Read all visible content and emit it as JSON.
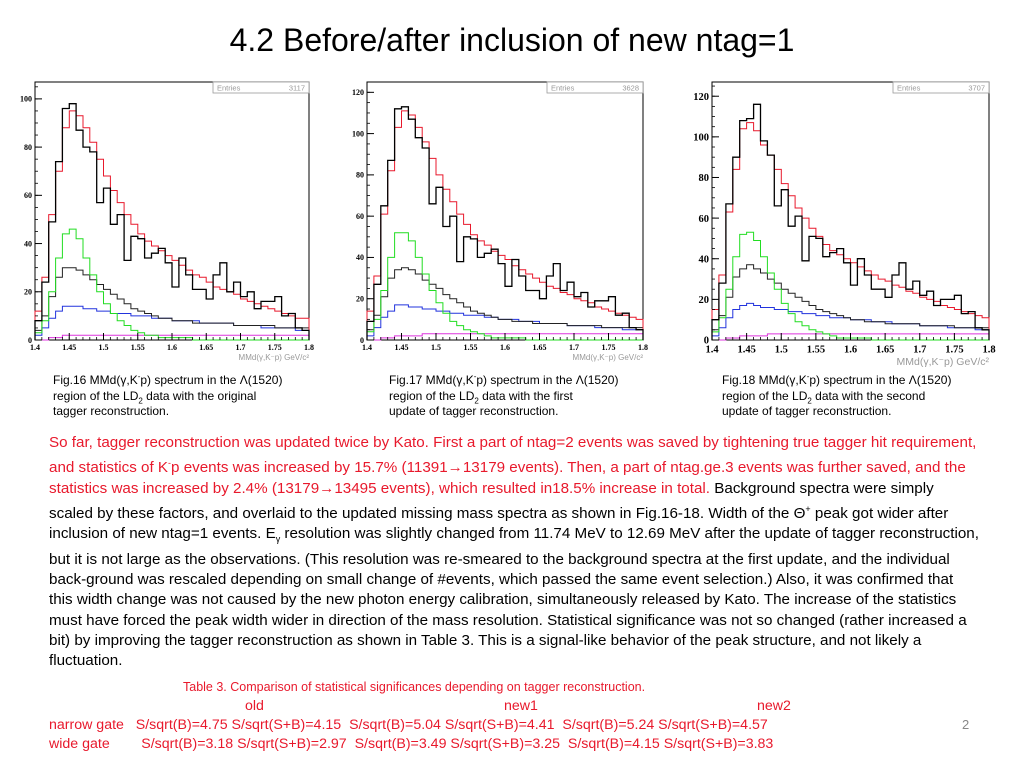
{
  "slide": {
    "title": "4.2 Before/after inclusion of new ntag=1",
    "page_number": "2"
  },
  "captions": [
    {
      "prefix": "Fig.16 MMd(",
      "gamma": "γ",
      "mid": ",K",
      "minus": "-",
      "p_text": "p) spectrum in the ",
      "lambda": "Λ",
      "res": "(1520)",
      "line2a": "region of the LD",
      "sub2": "2",
      "line2b": " data with the original",
      "line3": "tagger reconstruction."
    },
    {
      "prefix": "Fig.17 MMd(",
      "gamma": "γ",
      "mid": ",K",
      "minus": "-",
      "p_text": "p) spectrum in the ",
      "lambda": "Λ",
      "res": "(1520)",
      "line2a": "region of the LD",
      "sub2": "2",
      "line2b": " data with the first",
      "line3": "update of tagger reconstruction."
    },
    {
      "prefix": "Fig.18 MMd(",
      "gamma": "γ",
      "mid": ",K",
      "minus": "-",
      "p_text": "p) spectrum in the ",
      "lambda": "Λ",
      "res": "(1520)",
      "line2a": "region of the LD",
      "sub2": "2",
      "line2b": " data with the second",
      "line3": "update of tagger reconstruction."
    }
  ],
  "body": {
    "red1": "So far, tagger reconstruction was updated twice by Kato. First a part of ntag=2 events was saved by tightening true tagger hit requirement, and statistics of K",
    "red_sup": "-",
    "red2": "p events was increased by 15.7% (11391",
    "arrow1": "→",
    "red3": "13179 events). Then, a part of ntag.ge.3 events was further saved, and the statistics was increased by 2.4% (13179",
    "arrow2": "→",
    "red4": "13495 events), which resulted in18.5% increase in total.",
    "black1": " Background spectra were simply scaled by these factors, and overlaid to the updated missing mass spectra as shown in Fig.16-18. Width of the ",
    "theta": "Θ",
    "theta_sup": "+",
    "black2": " peak got wider after inclusion of new ntag=1 events. E",
    "gamma_sub": "γ",
    "black3": " resolution was slightly changed from 11.74 MeV to 12.69 MeV after the update of tagger reconstruction, but it is not large as the observations. (This resolution was re-smeared to the background spectra at the first update, and the individual back-ground was rescaled depending on small change of #events, which passed the same event selection.) Also, it was confirmed that this width change was not caused by the new photon energy calibration, simultaneously released by Kato. The increase of the statistics must have forced the peak width wider in direction of the mass resolution. Statistical significance was not so changed (rather increased a bit) by improving the tagger reconstruction as shown in Table 3. This is a signal-like behavior of the peak structure, and not likely a fluctuation."
  },
  "table": {
    "title": "Table 3. Comparison of statistical significances depending on tagger reconstruction.",
    "headers": [
      "old",
      "new1",
      "new2"
    ],
    "rows": [
      {
        "label": "narrow gate",
        "cells": [
          "S/sqrt(B)=4.75 S/sqrt(S+B)=4.15",
          "S/sqrt(B)=5.04 S/sqrt(S+B)=4.41",
          "S/sqrt(B)=5.24 S/sqrt(S+B)=4.57"
        ]
      },
      {
        "label": "wide gate",
        "cells": [
          "S/sqrt(B)=3.18 S/sqrt(S+B)=2.97",
          "S/sqrt(B)=3.49 S/sqrt(S+B)=3.25",
          "S/sqrt(B)=4.15 S/sqrt(S+B)=3.83"
        ]
      }
    ]
  },
  "colors": {
    "data": "#000000",
    "total": "#e8192c",
    "green": "#22dd22",
    "black_bg": "#222222",
    "blue": "#2233dd",
    "magenta": "#dd33dd",
    "text_red": "#e8192c"
  },
  "chart_data": [
    {
      "type": "line",
      "figure": "Fig.16",
      "entries_label": "Entries",
      "entries_value": "3117",
      "xlabel": "MMd(γ,K⁻p) GeV/c²",
      "xlim": [
        1.4,
        1.8
      ],
      "ylim": [
        0,
        107
      ],
      "xticks": [
        "1.4",
        "1.45",
        "1.5",
        "1.55",
        "1.6",
        "1.65",
        "1.7",
        "1.75",
        "1.8"
      ],
      "yticks": [
        "0",
        "20",
        "40",
        "60",
        "80",
        "100"
      ],
      "x": [
        1.4,
        1.41,
        1.42,
        1.43,
        1.44,
        1.45,
        1.46,
        1.47,
        1.48,
        1.49,
        1.5,
        1.51,
        1.52,
        1.53,
        1.54,
        1.55,
        1.56,
        1.57,
        1.58,
        1.59,
        1.6,
        1.61,
        1.62,
        1.63,
        1.64,
        1.65,
        1.66,
        1.67,
        1.68,
        1.69,
        1.7,
        1.71,
        1.72,
        1.73,
        1.74,
        1.75,
        1.76,
        1.77,
        1.78,
        1.79
      ],
      "series": [
        {
          "values": [
            8,
            24,
            49,
            74,
            96,
            98,
            87,
            80,
            78,
            57,
            63,
            48,
            52,
            33,
            43,
            42,
            34,
            36,
            38,
            32,
            22,
            34,
            27,
            21,
            21,
            17,
            27,
            32,
            20,
            24,
            18,
            20,
            13,
            16,
            16,
            18,
            10,
            11,
            5,
            4
          ]
        },
        {
          "values": [
            12,
            26,
            52,
            70,
            88,
            95,
            93,
            88,
            82,
            75,
            68,
            62,
            57,
            52,
            48,
            44,
            41,
            39,
            37,
            35,
            33,
            31,
            29,
            27,
            26,
            24,
            22,
            21,
            20,
            19,
            17,
            16,
            15,
            14,
            13,
            12,
            11,
            10,
            9,
            9
          ]
        },
        {
          "values": [
            3,
            8,
            20,
            34,
            44,
            46,
            42,
            34,
            27,
            20,
            15,
            11,
            8,
            6,
            4,
            3,
            2,
            2,
            1,
            1,
            1,
            1,
            1,
            0,
            0,
            0,
            0,
            0,
            0,
            0,
            0,
            0,
            0,
            0,
            0,
            0,
            0,
            0,
            0,
            0
          ]
        },
        {
          "values": [
            4,
            10,
            18,
            26,
            30,
            30,
            29,
            27,
            25,
            23,
            21,
            19,
            17,
            15,
            13,
            12,
            11,
            10,
            9,
            9,
            8,
            8,
            8,
            7,
            7,
            7,
            7,
            7,
            7,
            6,
            6,
            6,
            6,
            6,
            6,
            5,
            5,
            5,
            5,
            5
          ]
        },
        {
          "values": [
            2,
            5,
            9,
            12,
            14,
            14,
            14,
            13,
            13,
            12,
            12,
            11,
            11,
            11,
            10,
            10,
            10,
            9,
            9,
            9,
            8,
            8,
            8,
            8,
            7,
            7,
            7,
            7,
            7,
            6,
            6,
            6,
            6,
            5,
            5,
            5,
            5,
            5,
            4,
            4
          ]
        },
        {
          "values": [
            0,
            0,
            1,
            1,
            2,
            2,
            2,
            2,
            2,
            2,
            2,
            2,
            2,
            2,
            2,
            2,
            2,
            2,
            2,
            2,
            2,
            2,
            2,
            2,
            2,
            2,
            2,
            2,
            2,
            2,
            2,
            2,
            2,
            2,
            2,
            2,
            2,
            2,
            2,
            2
          ]
        }
      ]
    },
    {
      "type": "line",
      "figure": "Fig.17",
      "entries_label": "Entries",
      "entries_value": "3628",
      "xlabel": "MMd(γ,K⁻p) GeV/c²",
      "xlim": [
        1.4,
        1.8
      ],
      "ylim": [
        0,
        125
      ],
      "xticks": [
        "1.4",
        "1.45",
        "1.5",
        "1.55",
        "1.6",
        "1.65",
        "1.7",
        "1.75",
        "1.8"
      ],
      "yticks": [
        "0",
        "20",
        "40",
        "60",
        "80",
        "100",
        "120"
      ],
      "x": [
        1.4,
        1.41,
        1.42,
        1.43,
        1.44,
        1.45,
        1.46,
        1.47,
        1.48,
        1.49,
        1.5,
        1.51,
        1.52,
        1.53,
        1.54,
        1.55,
        1.56,
        1.57,
        1.58,
        1.59,
        1.6,
        1.61,
        1.62,
        1.63,
        1.64,
        1.65,
        1.66,
        1.67,
        1.68,
        1.69,
        1.7,
        1.71,
        1.72,
        1.73,
        1.74,
        1.75,
        1.76,
        1.77,
        1.78,
        1.79
      ],
      "series": [
        {
          "values": [
            9,
            27,
            65,
            87,
            112,
            113,
            107,
            98,
            93,
            66,
            74,
            55,
            60,
            38,
            50,
            49,
            40,
            42,
            44,
            37,
            26,
            39,
            31,
            24,
            24,
            20,
            31,
            37,
            24,
            28,
            21,
            23,
            16,
            19,
            19,
            21,
            12,
            13,
            6,
            5
          ]
        },
        {
          "values": [
            14,
            31,
            61,
            82,
            103,
            111,
            109,
            103,
            96,
            88,
            80,
            73,
            67,
            61,
            56,
            51,
            48,
            46,
            43,
            41,
            39,
            36,
            34,
            32,
            30,
            28,
            26,
            25,
            23,
            22,
            20,
            19,
            18,
            16,
            15,
            14,
            13,
            12,
            11,
            10
          ]
        },
        {
          "values": [
            4,
            10,
            24,
            40,
            52,
            52,
            48,
            40,
            32,
            24,
            18,
            13,
            9,
            7,
            5,
            4,
            3,
            2,
            1,
            1,
            1,
            1,
            1,
            0,
            0,
            0,
            0,
            0,
            0,
            0,
            0,
            0,
            0,
            0,
            0,
            0,
            0,
            0,
            0,
            0
          ]
        },
        {
          "values": [
            5,
            12,
            21,
            30,
            34,
            35,
            34,
            32,
            29,
            27,
            25,
            22,
            20,
            18,
            16,
            14,
            13,
            12,
            11,
            10,
            10,
            9,
            9,
            9,
            8,
            8,
            8,
            8,
            8,
            7,
            7,
            7,
            7,
            7,
            6,
            6,
            6,
            6,
            6,
            6
          ]
        },
        {
          "values": [
            2,
            6,
            11,
            14,
            17,
            17,
            16,
            16,
            15,
            15,
            14,
            14,
            13,
            13,
            12,
            12,
            12,
            11,
            11,
            10,
            10,
            10,
            9,
            9,
            9,
            8,
            8,
            8,
            8,
            7,
            7,
            7,
            7,
            6,
            6,
            6,
            6,
            5,
            5,
            5
          ]
        },
        {
          "values": [
            0,
            0,
            1,
            1,
            2,
            2,
            2,
            2,
            3,
            3,
            3,
            3,
            3,
            3,
            3,
            3,
            3,
            3,
            3,
            3,
            3,
            3,
            3,
            3,
            3,
            3,
            3,
            3,
            3,
            3,
            3,
            3,
            3,
            3,
            3,
            3,
            3,
            3,
            3,
            3
          ]
        }
      ]
    },
    {
      "type": "line",
      "figure": "Fig.18",
      "entries_label": "Entries",
      "entries_value": "3707",
      "xlabel": "MMd(γ,K⁻p) GeV/c²",
      "xlim": [
        1.4,
        1.8
      ],
      "ylim": [
        0,
        127
      ],
      "xticks": [
        "1.4",
        "1.45",
        "1.5",
        "1.55",
        "1.6",
        "1.65",
        "1.7",
        "1.75",
        "1.8"
      ],
      "yticks": [
        "0",
        "20",
        "40",
        "60",
        "80",
        "100",
        "120"
      ],
      "x": [
        1.4,
        1.41,
        1.42,
        1.43,
        1.44,
        1.45,
        1.46,
        1.47,
        1.48,
        1.49,
        1.5,
        1.51,
        1.52,
        1.53,
        1.54,
        1.55,
        1.56,
        1.57,
        1.58,
        1.59,
        1.6,
        1.61,
        1.62,
        1.63,
        1.64,
        1.65,
        1.66,
        1.67,
        1.68,
        1.69,
        1.7,
        1.71,
        1.72,
        1.73,
        1.74,
        1.75,
        1.76,
        1.77,
        1.78,
        1.79
      ],
      "series": [
        {
          "values": [
            10,
            28,
            67,
            90,
            108,
            109,
            116,
            98,
            91,
            66,
            74,
            56,
            61,
            39,
            51,
            50,
            41,
            43,
            45,
            38,
            27,
            40,
            32,
            25,
            25,
            21,
            32,
            38,
            25,
            29,
            22,
            24,
            17,
            20,
            20,
            22,
            13,
            14,
            6,
            5
          ]
        },
        {
          "values": [
            15,
            32,
            63,
            84,
            104,
            107,
            103,
            96,
            91,
            84,
            77,
            71,
            65,
            60,
            55,
            51,
            47,
            44,
            42,
            40,
            38,
            36,
            34,
            32,
            30,
            29,
            27,
            26,
            24,
            23,
            21,
            20,
            19,
            17,
            16,
            15,
            14,
            13,
            12,
            11
          ]
        },
        {
          "values": [
            4,
            11,
            25,
            41,
            52,
            53,
            49,
            41,
            33,
            25,
            18,
            13,
            9,
            7,
            5,
            4,
            3,
            2,
            1,
            1,
            1,
            1,
            1,
            0,
            0,
            0,
            0,
            0,
            0,
            0,
            0,
            0,
            0,
            0,
            0,
            0,
            0,
            0,
            0,
            0
          ]
        },
        {
          "values": [
            5,
            12,
            21,
            31,
            35,
            37,
            35,
            33,
            30,
            28,
            25,
            23,
            21,
            19,
            17,
            15,
            14,
            13,
            12,
            11,
            10,
            10,
            9,
            9,
            9,
            8,
            8,
            8,
            8,
            8,
            7,
            7,
            7,
            7,
            7,
            6,
            6,
            6,
            6,
            6
          ]
        },
        {
          "values": [
            2,
            6,
            11,
            15,
            17,
            18,
            17,
            16,
            16,
            15,
            15,
            14,
            14,
            13,
            13,
            12,
            12,
            11,
            11,
            11,
            10,
            10,
            10,
            9,
            9,
            9,
            8,
            8,
            8,
            8,
            7,
            7,
            7,
            7,
            6,
            6,
            6,
            6,
            5,
            5
          ]
        },
        {
          "values": [
            0,
            0,
            1,
            1,
            2,
            2,
            2,
            2,
            3,
            3,
            3,
            3,
            3,
            3,
            3,
            3,
            3,
            3,
            3,
            3,
            3,
            3,
            3,
            3,
            3,
            3,
            3,
            3,
            3,
            3,
            3,
            3,
            3,
            3,
            3,
            3,
            3,
            3,
            3,
            3
          ]
        }
      ]
    }
  ]
}
